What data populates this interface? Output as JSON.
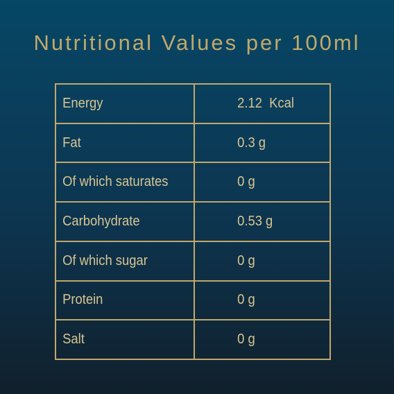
{
  "header": {
    "title": "Nutritional Values per 100ml"
  },
  "table": {
    "rows": [
      [
        "Energy",
        "2.12  Kcal"
      ],
      [
        "Fat",
        "0.3 g"
      ],
      [
        "Of which saturates",
        "0 g"
      ],
      [
        "Carbohydrate",
        "0.53 g"
      ],
      [
        "Of which sugar",
        "0 g"
      ],
      [
        "Protein",
        "0 g"
      ],
      [
        "Salt",
        "0 g"
      ]
    ]
  }
}
